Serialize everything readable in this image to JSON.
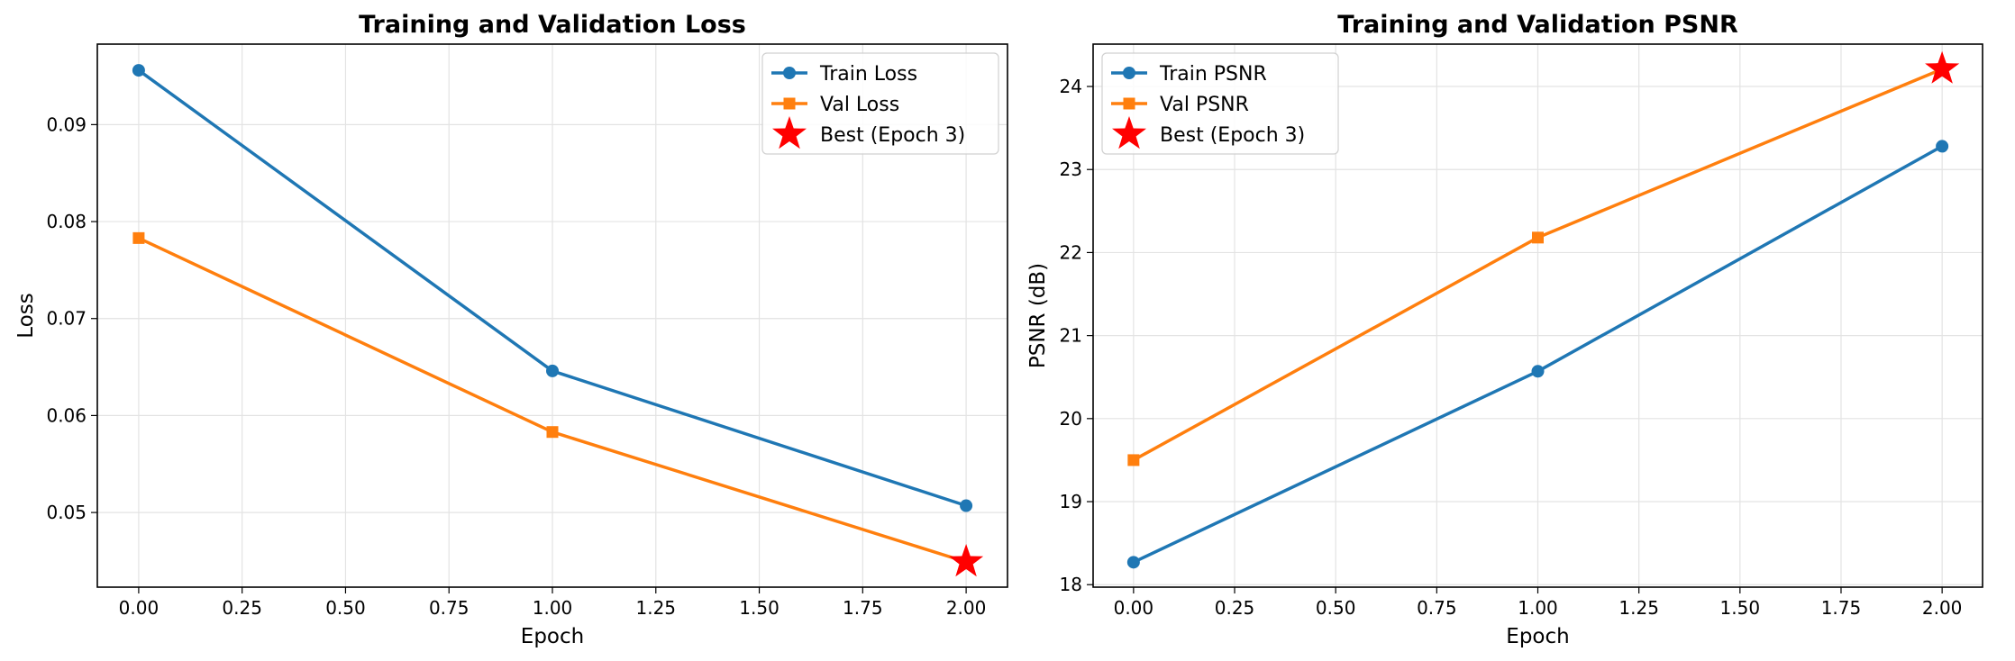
{
  "chart_data": [
    {
      "type": "line",
      "title": "Training and Validation Loss",
      "xlabel": "Epoch",
      "ylabel": "Loss",
      "xlim": [
        -0.1,
        2.1
      ],
      "ylim": [
        0.0423,
        0.0983
      ],
      "xticks": [
        0.0,
        0.25,
        0.5,
        0.75,
        1.0,
        1.25,
        1.5,
        1.75,
        2.0
      ],
      "xtick_labels": [
        "0.00",
        "0.25",
        "0.50",
        "0.75",
        "1.00",
        "1.25",
        "1.50",
        "1.75",
        "2.00"
      ],
      "yticks": [
        0.05,
        0.06,
        0.07,
        0.08,
        0.09
      ],
      "ytick_labels": [
        "0.05",
        "0.06",
        "0.07",
        "0.08",
        "0.09"
      ],
      "grid": true,
      "legend_position": "top-right",
      "series": [
        {
          "name": "Train Loss",
          "color": "#1f77b4",
          "marker": "circle",
          "x": [
            0,
            1,
            2
          ],
          "y": [
            0.0956,
            0.0646,
            0.0507
          ]
        },
        {
          "name": "Val Loss",
          "color": "#ff7f0e",
          "marker": "square",
          "x": [
            0,
            1,
            2
          ],
          "y": [
            0.0783,
            0.0583,
            0.0449
          ]
        }
      ],
      "best": {
        "label": "Best (Epoch 3)",
        "color": "#ff0000",
        "marker": "star",
        "x": 2,
        "y": 0.0449
      }
    },
    {
      "type": "line",
      "title": "Training and Validation PSNR",
      "xlabel": "Epoch",
      "ylabel": "PSNR (dB)",
      "xlim": [
        -0.1,
        2.1
      ],
      "ylim": [
        17.97,
        24.51
      ],
      "xticks": [
        0.0,
        0.25,
        0.5,
        0.75,
        1.0,
        1.25,
        1.5,
        1.75,
        2.0
      ],
      "xtick_labels": [
        "0.00",
        "0.25",
        "0.50",
        "0.75",
        "1.00",
        "1.25",
        "1.50",
        "1.75",
        "2.00"
      ],
      "yticks": [
        18,
        19,
        20,
        21,
        22,
        23,
        24
      ],
      "ytick_labels": [
        "18",
        "19",
        "20",
        "21",
        "22",
        "23",
        "24"
      ],
      "grid": true,
      "legend_position": "top-left",
      "series": [
        {
          "name": "Train PSNR",
          "color": "#1f77b4",
          "marker": "circle",
          "x": [
            0,
            1,
            2
          ],
          "y": [
            18.27,
            20.57,
            23.28
          ]
        },
        {
          "name": "Val PSNR",
          "color": "#ff7f0e",
          "marker": "square",
          "x": [
            0,
            1,
            2
          ],
          "y": [
            19.5,
            22.18,
            24.21
          ]
        }
      ],
      "best": {
        "label": "Best (Epoch 3)",
        "color": "#ff0000",
        "marker": "star",
        "x": 2,
        "y": 24.21
      }
    }
  ]
}
